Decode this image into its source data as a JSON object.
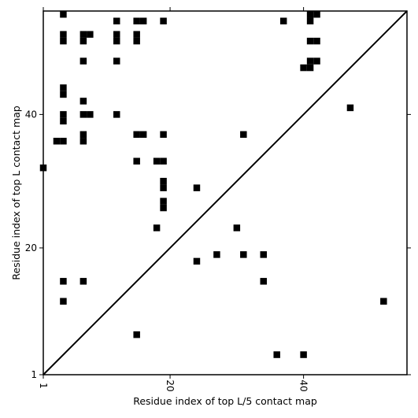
{
  "chart_data": {
    "type": "heatmap",
    "xlabel": "Residue index of top L/5 contact map",
    "ylabel": "Residue index of top L contact map",
    "xlim": [
      1,
      55.5
    ],
    "ylim": [
      1,
      55.5
    ],
    "x_ticks": [
      {
        "value": 1,
        "label": "1"
      },
      {
        "value": 20,
        "label": "20"
      },
      {
        "value": 40,
        "label": "40"
      }
    ],
    "y_ticks": [
      {
        "value": 1,
        "label": "1"
      },
      {
        "value": 20,
        "label": "20"
      },
      {
        "value": 40,
        "label": "40"
      }
    ],
    "diagonal_line": true,
    "cell_color": "#000000",
    "background_color": "#ffffff",
    "upper_triangle_contacts": [
      [
        4,
        55
      ],
      [
        4,
        52
      ],
      [
        4,
        51
      ],
      [
        4,
        44
      ],
      [
        4,
        43
      ],
      [
        4,
        40
      ],
      [
        4,
        39
      ],
      [
        3,
        36
      ],
      [
        4,
        36
      ],
      [
        7,
        52
      ],
      [
        7,
        51
      ],
      [
        7,
        48
      ],
      [
        7,
        42
      ],
      [
        7,
        40
      ],
      [
        7,
        37
      ],
      [
        7,
        36
      ],
      [
        8,
        52
      ],
      [
        8,
        40
      ],
      [
        12,
        54
      ],
      [
        12,
        52
      ],
      [
        12,
        51
      ],
      [
        12,
        48
      ],
      [
        12,
        40
      ],
      [
        15,
        54
      ],
      [
        15,
        52
      ],
      [
        15,
        51
      ],
      [
        15,
        37
      ],
      [
        15,
        33
      ],
      [
        16,
        54
      ],
      [
        16,
        37
      ],
      [
        19,
        54
      ],
      [
        19,
        37
      ],
      [
        18,
        33
      ],
      [
        19,
        33
      ],
      [
        19,
        30
      ],
      [
        19,
        29
      ],
      [
        19,
        27
      ],
      [
        19,
        26
      ],
      [
        18,
        23
      ],
      [
        24,
        29
      ],
      [
        31,
        37
      ],
      [
        37,
        54
      ],
      [
        41,
        55
      ],
      [
        42,
        55
      ],
      [
        41,
        54
      ],
      [
        41,
        51
      ],
      [
        42,
        51
      ],
      [
        41,
        48
      ],
      [
        42,
        48
      ],
      [
        40,
        47
      ],
      [
        41,
        47
      ],
      [
        47,
        41
      ],
      [
        1,
        32
      ]
    ],
    "lower_triangle_contacts": [
      [
        4,
        15
      ],
      [
        4,
        12
      ],
      [
        7,
        15
      ],
      [
        15,
        7
      ],
      [
        24,
        18
      ],
      [
        27,
        19
      ],
      [
        30,
        23
      ],
      [
        31,
        19
      ],
      [
        34,
        19
      ],
      [
        34,
        15
      ],
      [
        36,
        4
      ],
      [
        40,
        4
      ],
      [
        52,
        12
      ]
    ]
  }
}
